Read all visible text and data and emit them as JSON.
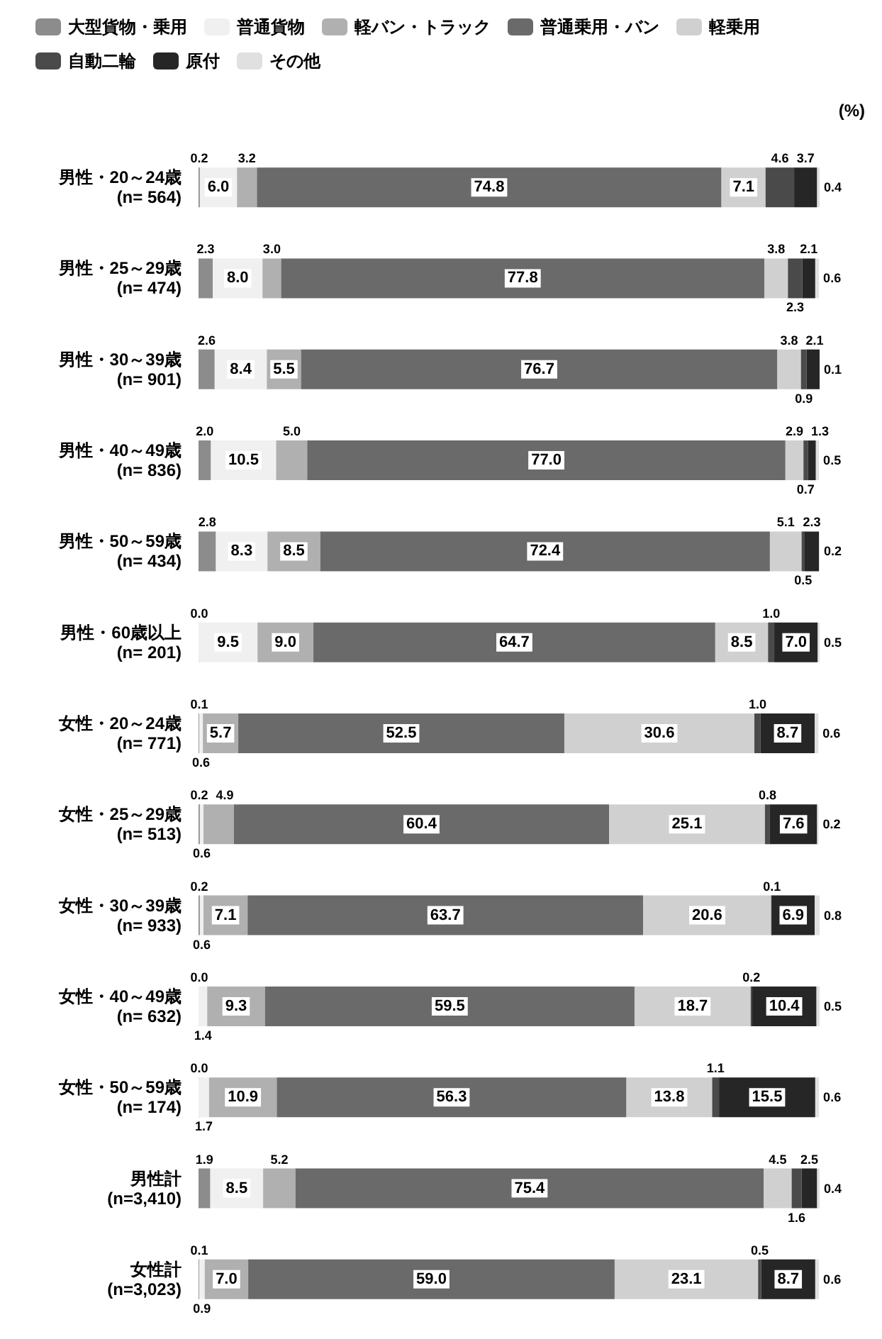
{
  "chart_data": {
    "type": "bar",
    "orientation": "horizontal",
    "stacked": true,
    "legend": "top",
    "tick_labels": "y",
    "xlim": [
      0,
      100
    ],
    "annotations": [
      "(%)"
    ],
    "categories": [
      "男性・20～24歳\n(n= 564)",
      "男性・25～29歳\n(n= 474)",
      "男性・30～39歳\n(n= 901)",
      "男性・40～49歳\n(n= 836)",
      "男性・50～59歳\n(n= 434)",
      "男性・60歳以上\n(n= 201)",
      "女性・20～24歳\n(n= 771)",
      "女性・25～29歳\n(n= 513)",
      "女性・30～39歳\n(n= 933)",
      "女性・40～49歳\n(n= 632)",
      "女性・50～59歳\n(n= 174)",
      "男性計\n(n=3,410)",
      "女性計\n(n=3,023)"
    ],
    "series": [
      {
        "name": "大型貨物・乗用",
        "color": "#8c8c8c",
        "values": [
          0.2,
          2.3,
          2.6,
          2.0,
          2.8,
          0.0,
          0.1,
          0.2,
          0.2,
          0.0,
          0.0,
          1.9,
          0.1
        ],
        "value_labels": [
          "0.2",
          "2.3",
          "2.6",
          "2.0",
          "2.8",
          "0.0",
          "0.1",
          "0.2",
          "0.2",
          "0.0",
          "0.0",
          "1.9",
          "0.1"
        ]
      },
      {
        "name": "普通貨物",
        "color": "#f0f0f0",
        "values": [
          6.0,
          8.0,
          8.4,
          10.5,
          8.3,
          9.5,
          0.6,
          0.6,
          0.6,
          1.4,
          1.7,
          8.5,
          0.9
        ],
        "value_labels": [
          "6.0",
          "8.0",
          "8.4",
          "10.5",
          "8.3",
          "9.5",
          "0.6",
          "0.6",
          "0.6",
          "1.4",
          "1.7",
          "8.5",
          "0.9"
        ]
      },
      {
        "name": "軽バン・トラック",
        "color": "#b0b0b0",
        "values": [
          3.2,
          3.0,
          5.5,
          5.0,
          8.5,
          9.0,
          5.7,
          4.9,
          7.1,
          9.3,
          10.9,
          5.2,
          7.0
        ],
        "value_labels": [
          "3.2",
          "3.0",
          "5.5",
          "5.0",
          "8.5",
          "9.0",
          "5.7",
          "4.9",
          "7.1",
          "9.3",
          "10.9",
          "5.2",
          "7.0"
        ]
      },
      {
        "name": "普通乗用・バン",
        "color": "#6a6a6a",
        "values": [
          74.8,
          77.8,
          76.7,
          77.0,
          72.4,
          64.7,
          52.5,
          60.4,
          63.7,
          59.5,
          56.3,
          75.4,
          59.0
        ],
        "value_labels": [
          "74.8",
          "77.8",
          "76.7",
          "77.0",
          "72.4",
          "64.7",
          "52.5",
          "60.4",
          "63.7",
          "59.5",
          "56.3",
          "75.4",
          "59.0"
        ]
      },
      {
        "name": "軽乗用",
        "color": "#d0d0d0",
        "values": [
          7.1,
          3.8,
          3.8,
          2.9,
          5.1,
          8.5,
          30.6,
          25.1,
          20.6,
          18.7,
          13.8,
          4.5,
          23.1
        ],
        "value_labels": [
          "7.1",
          "3.8",
          "3.8",
          "2.9",
          "5.1",
          "8.5",
          "30.6",
          "25.1",
          "20.6",
          "18.7",
          "13.8",
          "4.5",
          "23.1"
        ]
      },
      {
        "name": "自動二輪",
        "color": "#4a4a4a",
        "values": [
          4.6,
          2.3,
          0.9,
          0.7,
          0.5,
          1.0,
          1.0,
          0.8,
          0.1,
          0.2,
          1.1,
          1.6,
          0.5
        ],
        "value_labels": [
          "4.6",
          "2.3",
          "0.9",
          "0.7",
          "0.5",
          "1.0",
          "1.0",
          "0.8",
          "0.1",
          "0.2",
          "1.1",
          "1.6",
          "0.5"
        ]
      },
      {
        "name": "原付",
        "color": "#262626",
        "values": [
          3.7,
          2.1,
          2.1,
          1.3,
          2.3,
          7.0,
          8.7,
          7.6,
          6.9,
          10.4,
          15.5,
          2.5,
          8.7
        ],
        "value_labels": [
          "3.7",
          "2.1",
          "2.1",
          "1.3",
          "2.3",
          "7.0",
          "8.7",
          "7.6",
          "6.9",
          "10.4",
          "15.5",
          "2.5",
          "8.7"
        ]
      },
      {
        "name": "その他",
        "color": "#e0e0e0",
        "values": [
          0.4,
          0.6,
          0.1,
          0.5,
          0.2,
          0.5,
          0.6,
          0.2,
          0.8,
          0.5,
          0.6,
          0.4,
          0.6
        ],
        "value_labels": [
          "0.4",
          "0.6",
          "0.1",
          "0.5",
          "0.2",
          "0.5",
          "0.6",
          "0.2",
          "0.8",
          "0.5",
          "0.6",
          "0.4",
          "0.6"
        ]
      }
    ]
  }
}
